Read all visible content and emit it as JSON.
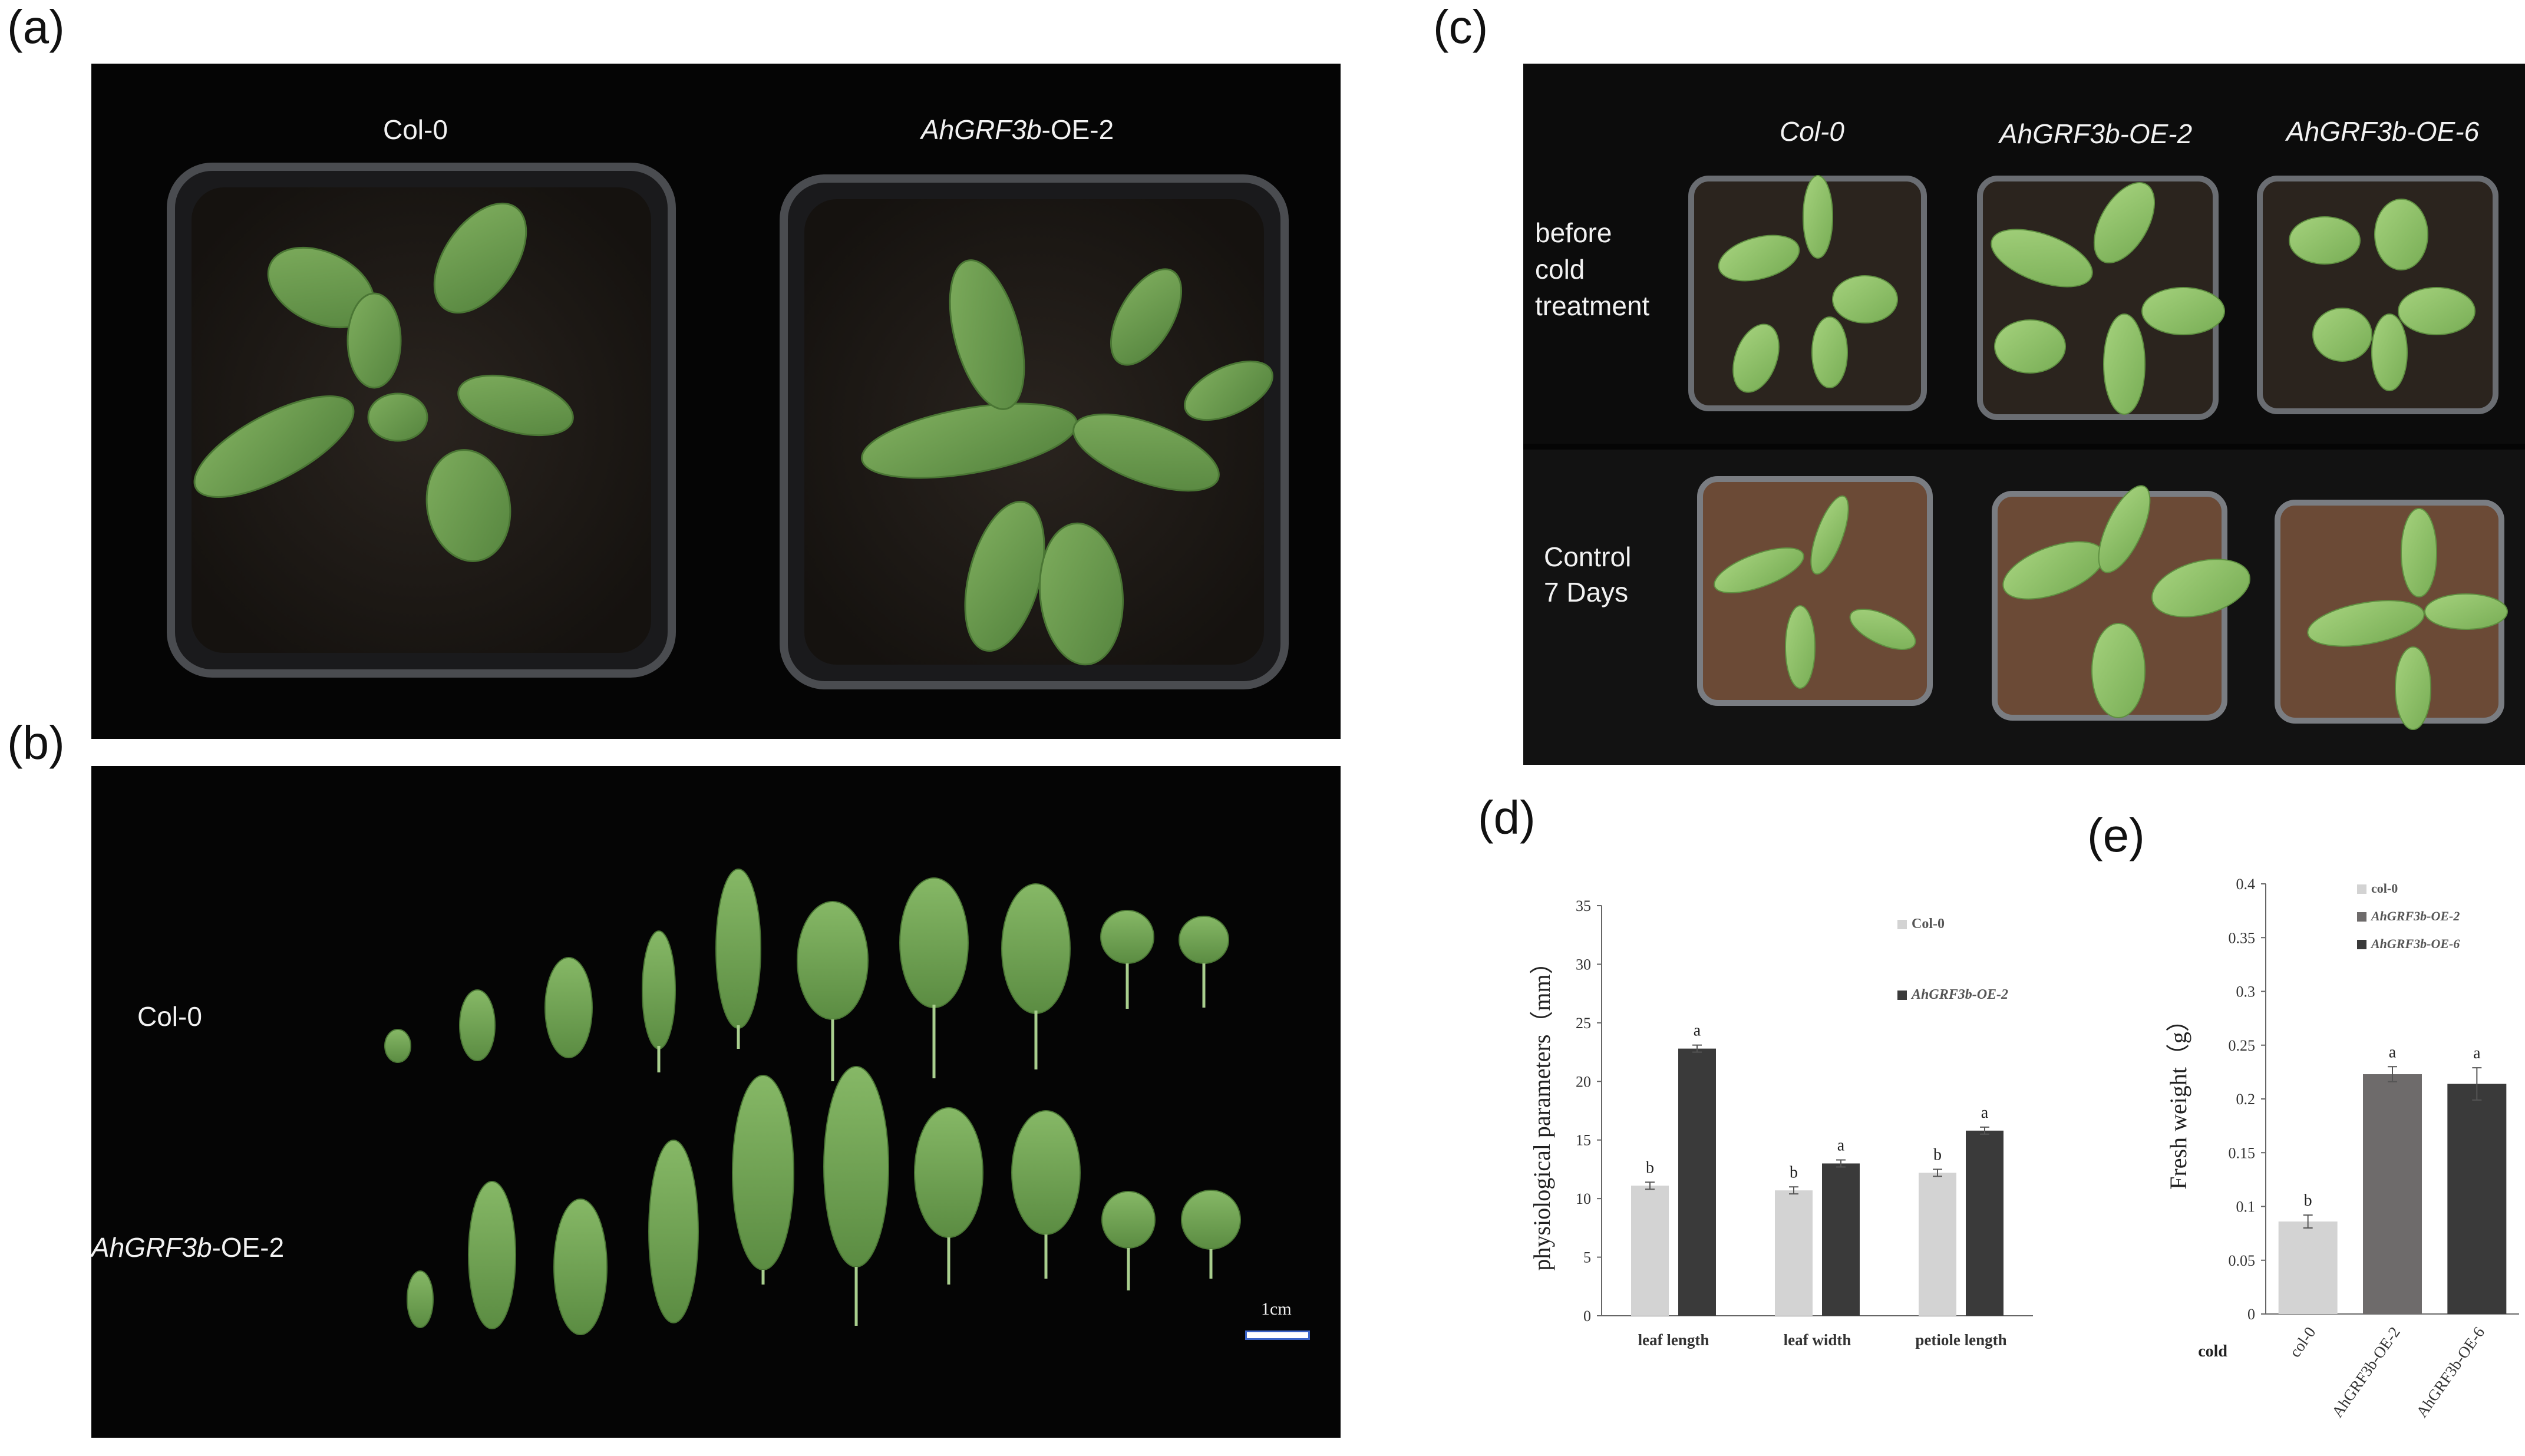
{
  "panels": {
    "a": "(a)",
    "b": "(b)",
    "c": "(c)",
    "d": "(d)",
    "e": "(e)"
  },
  "photo_a": {
    "left_label": "Col-0",
    "right_label_italic": "AhGRF3b",
    "right_label_suffix": "-OE-2"
  },
  "photo_b": {
    "row1_label": "Col-0",
    "row2_label_italic": "AhGRF3b",
    "row2_label_suffix": "-OE-2",
    "scale_label": "1cm"
  },
  "photo_c": {
    "col1": "Col-0",
    "col2": "AhGRF3b-OE-2",
    "col3": "AhGRF3b-OE-6",
    "row1_line1": "before",
    "row1_line2": "cold",
    "row1_line3": "treatment",
    "row2_line1": "Control",
    "row2_line2": "7 Days"
  },
  "chart_data": [
    {
      "type": "bar",
      "panel": "d",
      "categories": [
        "leaf length",
        "leaf width",
        "petiole length"
      ],
      "series": [
        {
          "name": "Col-0",
          "values": [
            11.1,
            10.7,
            12.2
          ],
          "errors": [
            0.3,
            0.3,
            0.3
          ],
          "letters": [
            "b",
            "b",
            "b"
          ],
          "color": "#d3d3d3"
        },
        {
          "name": "AhGRF3b-OE-2",
          "values": [
            22.8,
            13.0,
            15.8
          ],
          "errors": [
            0.3,
            0.3,
            0.3
          ],
          "letters": [
            "a",
            "a",
            "a"
          ],
          "color": "#3a3a3a"
        }
      ],
      "ylabel": "physiological parameters（mm）",
      "ylim": [
        0,
        35
      ],
      "yticks": [
        "0",
        "5",
        "10",
        "15",
        "20",
        "25",
        "30",
        "35"
      ],
      "legend_position": "top-right"
    },
    {
      "type": "bar",
      "panel": "e",
      "categories": [
        "col-0",
        "AhGRF3b-OE-2",
        "AhGRF3b-OE-6"
      ],
      "values": [
        0.086,
        0.223,
        0.214
      ],
      "errors": [
        0.006,
        0.007,
        0.015
      ],
      "letters": [
        "b",
        "a",
        "a"
      ],
      "colors": [
        "#d3d3d3",
        "#6e6b6b",
        "#3a3a3a"
      ],
      "legend": [
        "col-0",
        "AhGRF3b-OE-2",
        "AhGRF3b-OE-6"
      ],
      "ylabel": "Fresh weight（g）",
      "xlabel_left": "cold",
      "ylim": [
        0,
        0.4
      ],
      "yticks": [
        "0",
        "0.05",
        "0.1",
        "0.15",
        "0.2",
        "0.25",
        "0.3",
        "0.35",
        "0.4"
      ],
      "legend_position": "top-left"
    }
  ]
}
